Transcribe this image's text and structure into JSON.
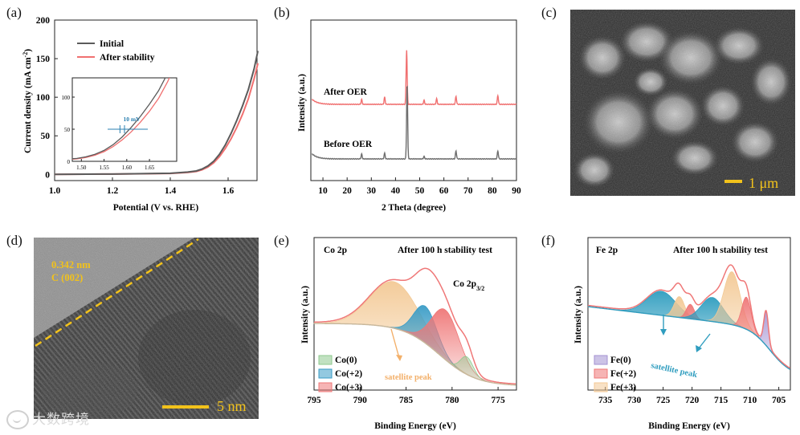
{
  "panel_labels": [
    "(a)",
    "(b)",
    "(c)",
    "(d)",
    "(e)",
    "(f)"
  ],
  "chart_data": [
    {
      "id": "a",
      "type": "line",
      "title": "",
      "xlabel": "Potential (V vs. RHE)",
      "ylabel": "Current density (mA cm^-2)",
      "ylabel_main": "Current density (mA cm",
      "ylabel_sup": "-2",
      "ylabel_end": ")",
      "xlim": [
        1.0,
        1.7
      ],
      "ylim": [
        -8,
        200
      ],
      "x_ticks": [
        "1.0",
        "1.2",
        "1.4",
        "1.6"
      ],
      "y_ticks": [
        "0",
        "50",
        "100",
        "150",
        "200"
      ],
      "legend": [
        "Initial",
        "After stability"
      ],
      "series": [
        {
          "name": "Initial",
          "color": "#5b5b5b",
          "x": [
            1.0,
            1.2,
            1.4,
            1.46,
            1.49,
            1.51,
            1.53,
            1.55,
            1.57,
            1.59,
            1.61,
            1.63,
            1.65,
            1.67,
            1.69,
            1.703
          ],
          "y": [
            0,
            0.5,
            1.5,
            3,
            4.5,
            7,
            11,
            17,
            26,
            38,
            53,
            70,
            89,
            110,
            137,
            160
          ]
        },
        {
          "name": "After stability",
          "color": "#f07070",
          "x": [
            1.0,
            1.2,
            1.4,
            1.46,
            1.49,
            1.51,
            1.53,
            1.55,
            1.57,
            1.59,
            1.61,
            1.63,
            1.65,
            1.67,
            1.69,
            1.703
          ],
          "y": [
            0,
            0.5,
            1.2,
            2.5,
            3.8,
            6,
            9.5,
            15,
            23,
            33.5,
            46,
            61,
            78,
            98,
            124,
            144
          ]
        }
      ],
      "inset": {
        "x_ticks": [
          "1.50",
          "1.55",
          "1.60",
          "1.65"
        ],
        "y_ticks": [
          "0",
          "50",
          "100"
        ],
        "xlim": [
          1.48,
          1.71
        ],
        "ylim": [
          0,
          130
        ],
        "annotation": "10 mV"
      }
    },
    {
      "id": "b",
      "type": "line",
      "xlabel": "2 Theta (degree)",
      "ylabel": "Intensity (a.u.)",
      "xlim": [
        5,
        90
      ],
      "x_ticks": [
        "10",
        "20",
        "30",
        "40",
        "50",
        "60",
        "70",
        "80",
        "90"
      ],
      "series": [
        {
          "name": "After OER",
          "color": "#f07070",
          "peaks": [
            [
              26,
              6
            ],
            [
              35.5,
              9
            ],
            [
              44.6,
              68
            ],
            [
              51.8,
              5
            ],
            [
              57,
              7
            ],
            [
              65.0,
              10
            ],
            [
              82.3,
              11
            ]
          ]
        },
        {
          "name": "Before OER",
          "color": "#6e6e6e",
          "peaks": [
            [
              26,
              6
            ],
            [
              35.5,
              7
            ],
            [
              44.8,
              93
            ],
            [
              51.8,
              3
            ],
            [
              65.0,
              10
            ],
            [
              82.3,
              10
            ]
          ]
        }
      ]
    },
    {
      "id": "e",
      "type": "area",
      "header": "Co 2p",
      "note": "After 100 h stability test",
      "peak_label_main": "Co 2p",
      "peak_label_sub": "3/2",
      "xlabel": "Binding Energy (eV)",
      "ylabel": "Intensity (a.u.)",
      "xlim": [
        795,
        773
      ],
      "x_ticks": [
        "795",
        "790",
        "785",
        "780",
        "775"
      ],
      "legend": [
        "Co(0)",
        "Co(+2)",
        "Co(+3)"
      ],
      "annotation": "satellite peak",
      "components": [
        {
          "name": "satellite",
          "center": 786.3,
          "height": 58,
          "width": 2.6,
          "color": "#f3c995"
        },
        {
          "name": "Co(+2)",
          "center": 782.9,
          "height": 46,
          "width": 1.25,
          "color": "#3a9cc6"
        },
        {
          "name": "Co(+3)",
          "center": 780.7,
          "height": 62,
          "width": 1.5,
          "color": "#ef7777"
        },
        {
          "name": "Co(0)",
          "center": 778.4,
          "height": 22,
          "width": 0.7,
          "color": "#8ec98e"
        }
      ]
    },
    {
      "id": "f",
      "type": "area",
      "header": "Fe 2p",
      "note": "After 100 h stability test",
      "xlabel": "Binding Energy (eV)",
      "ylabel": "Intensity (a.u.)",
      "xlim": [
        738,
        703
      ],
      "x_ticks": [
        "735",
        "730",
        "725",
        "720",
        "715",
        "710",
        "705"
      ],
      "legend": [
        "Fe(0)",
        "Fe(+2)",
        "Fe(+3)"
      ],
      "annotation": "satellite peak",
      "components": [
        {
          "name": "satellite-1",
          "center": 725.3,
          "height": 30,
          "width": 2.5,
          "color": "#2f9dbf"
        },
        {
          "name": "Fe(+3)-a",
          "center": 722.2,
          "height": 26,
          "width": 0.9,
          "color": "#f3c995"
        },
        {
          "name": "Fe(+2)-a",
          "center": 720.3,
          "height": 18,
          "width": 0.7,
          "color": "#ef7777"
        },
        {
          "name": "satellite-2",
          "center": 716.5,
          "height": 30,
          "width": 1.9,
          "color": "#2f9dbf"
        },
        {
          "name": "Fe(+3)-b",
          "center": 713.1,
          "height": 66,
          "width": 1.4,
          "color": "#f3c995"
        },
        {
          "name": "Fe(+2)-b",
          "center": 710.6,
          "height": 40,
          "width": 0.8,
          "color": "#ef7777"
        },
        {
          "name": "Fe(0)",
          "center": 707.2,
          "height": 42,
          "width": 0.4,
          "color": "#a391d1"
        }
      ]
    }
  ],
  "images": {
    "c": {
      "scale_label": "1 μm"
    },
    "d": {
      "lattice_label_1": "0.342 nm",
      "lattice_label_2": "C (002)",
      "scale_label": "5 nm"
    }
  },
  "watermark": "大数跨境"
}
